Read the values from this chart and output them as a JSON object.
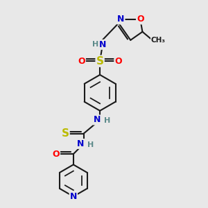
{
  "bg_color": "#e8e8e8",
  "bond_color": "#1a1a1a",
  "bond_width": 1.5,
  "atom_colors": {
    "N": "#0000cc",
    "O": "#ff0000",
    "S": "#bbbb00",
    "C": "#1a1a1a",
    "H": "#5c8a8a"
  },
  "font_size": 8.5,
  "figsize": [
    3.0,
    3.0
  ],
  "dpi": 100
}
